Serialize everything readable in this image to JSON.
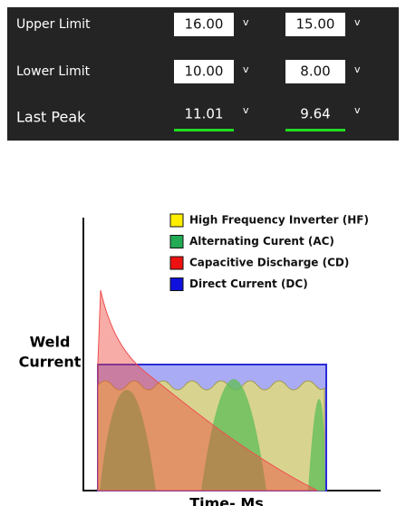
{
  "panel": {
    "rows": [
      {
        "label": "Upper Limit",
        "cells": [
          {
            "value": "16.00",
            "unit": "v"
          },
          {
            "value": "15.00",
            "unit": "v"
          }
        ]
      },
      {
        "label": "Lower Limit",
        "cells": [
          {
            "value": "10.00",
            "unit": "v"
          },
          {
            "value": "8.00",
            "unit": "v"
          }
        ]
      },
      {
        "label": "Last Peak",
        "cells": [
          {
            "value": "11.01",
            "unit": "v"
          },
          {
            "value": "9.64",
            "unit": "v"
          }
        ]
      }
    ]
  },
  "diagram": {
    "legend": [
      "High Frequency Inverter (HF)",
      "Alternating Curent (AC)",
      "Capacitive Discharge (CD)",
      "Direct Current (DC)"
    ],
    "y_label": [
      "Weld",
      "Current"
    ],
    "x_label": "Time- Ms"
  }
}
